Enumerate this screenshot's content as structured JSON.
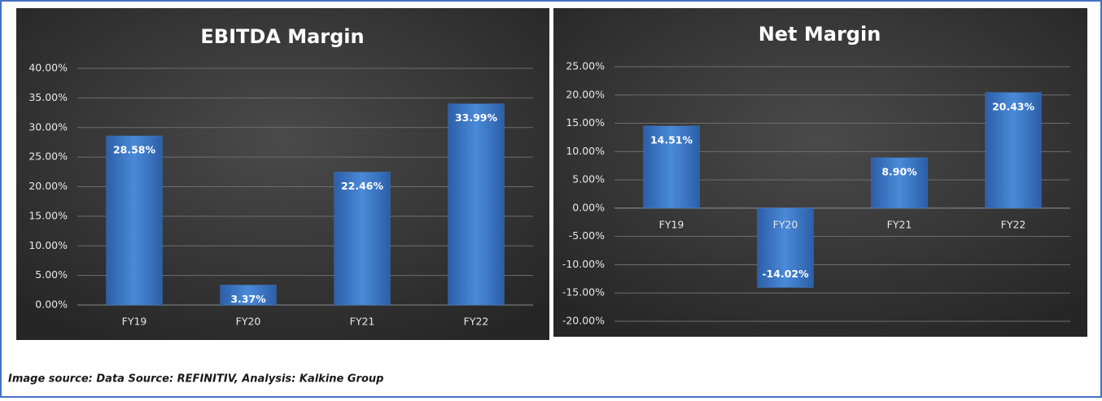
{
  "chart_data": [
    {
      "type": "bar",
      "title": "EBITDA Margin",
      "categories": [
        "FY19",
        "FY20",
        "FY21",
        "FY22"
      ],
      "values": [
        28.58,
        3.37,
        22.46,
        33.99
      ],
      "value_labels": [
        "28.58%",
        "3.37%",
        "22.46%",
        "33.99%"
      ],
      "color": "#3f7fd0",
      "ylim": [
        0,
        40
      ],
      "yticks": [
        {
          "value": 0,
          "label": "0.00%"
        },
        {
          "value": 5,
          "label": "5.00%"
        },
        {
          "value": 10,
          "label": "10.00%"
        },
        {
          "value": 15,
          "label": "15.00%"
        },
        {
          "value": 20,
          "label": "20.00%"
        },
        {
          "value": 25,
          "label": "25.00%"
        },
        {
          "value": 30,
          "label": "30.00%"
        },
        {
          "value": 35,
          "label": "35.00%"
        },
        {
          "value": 40,
          "label": "40.00%"
        }
      ],
      "grid": true
    },
    {
      "type": "bar",
      "title": "Net Margin",
      "categories": [
        "FY19",
        "FY20",
        "FY21",
        "FY22"
      ],
      "values": [
        14.51,
        -14.02,
        8.9,
        20.43
      ],
      "value_labels": [
        "14.51%",
        "-14.02%",
        "8.90%",
        "20.43%"
      ],
      "color": "#3f7fd0",
      "ylim": [
        -20,
        25
      ],
      "yticks": [
        {
          "value": -20,
          "label": "-20.00%"
        },
        {
          "value": -15,
          "label": "-15.00%"
        },
        {
          "value": -10,
          "label": "-10.00%"
        },
        {
          "value": -5,
          "label": "-5.00%"
        },
        {
          "value": 0,
          "label": "0.00%"
        },
        {
          "value": 5,
          "label": "5.00%"
        },
        {
          "value": 10,
          "label": "10.00%"
        },
        {
          "value": 15,
          "label": "15.00%"
        },
        {
          "value": 20,
          "label": "20.00%"
        },
        {
          "value": 25,
          "label": "25.00%"
        }
      ],
      "grid": true
    }
  ],
  "caption": "Image source: Data Source: REFINITIV, Analysis: Kalkine Group"
}
